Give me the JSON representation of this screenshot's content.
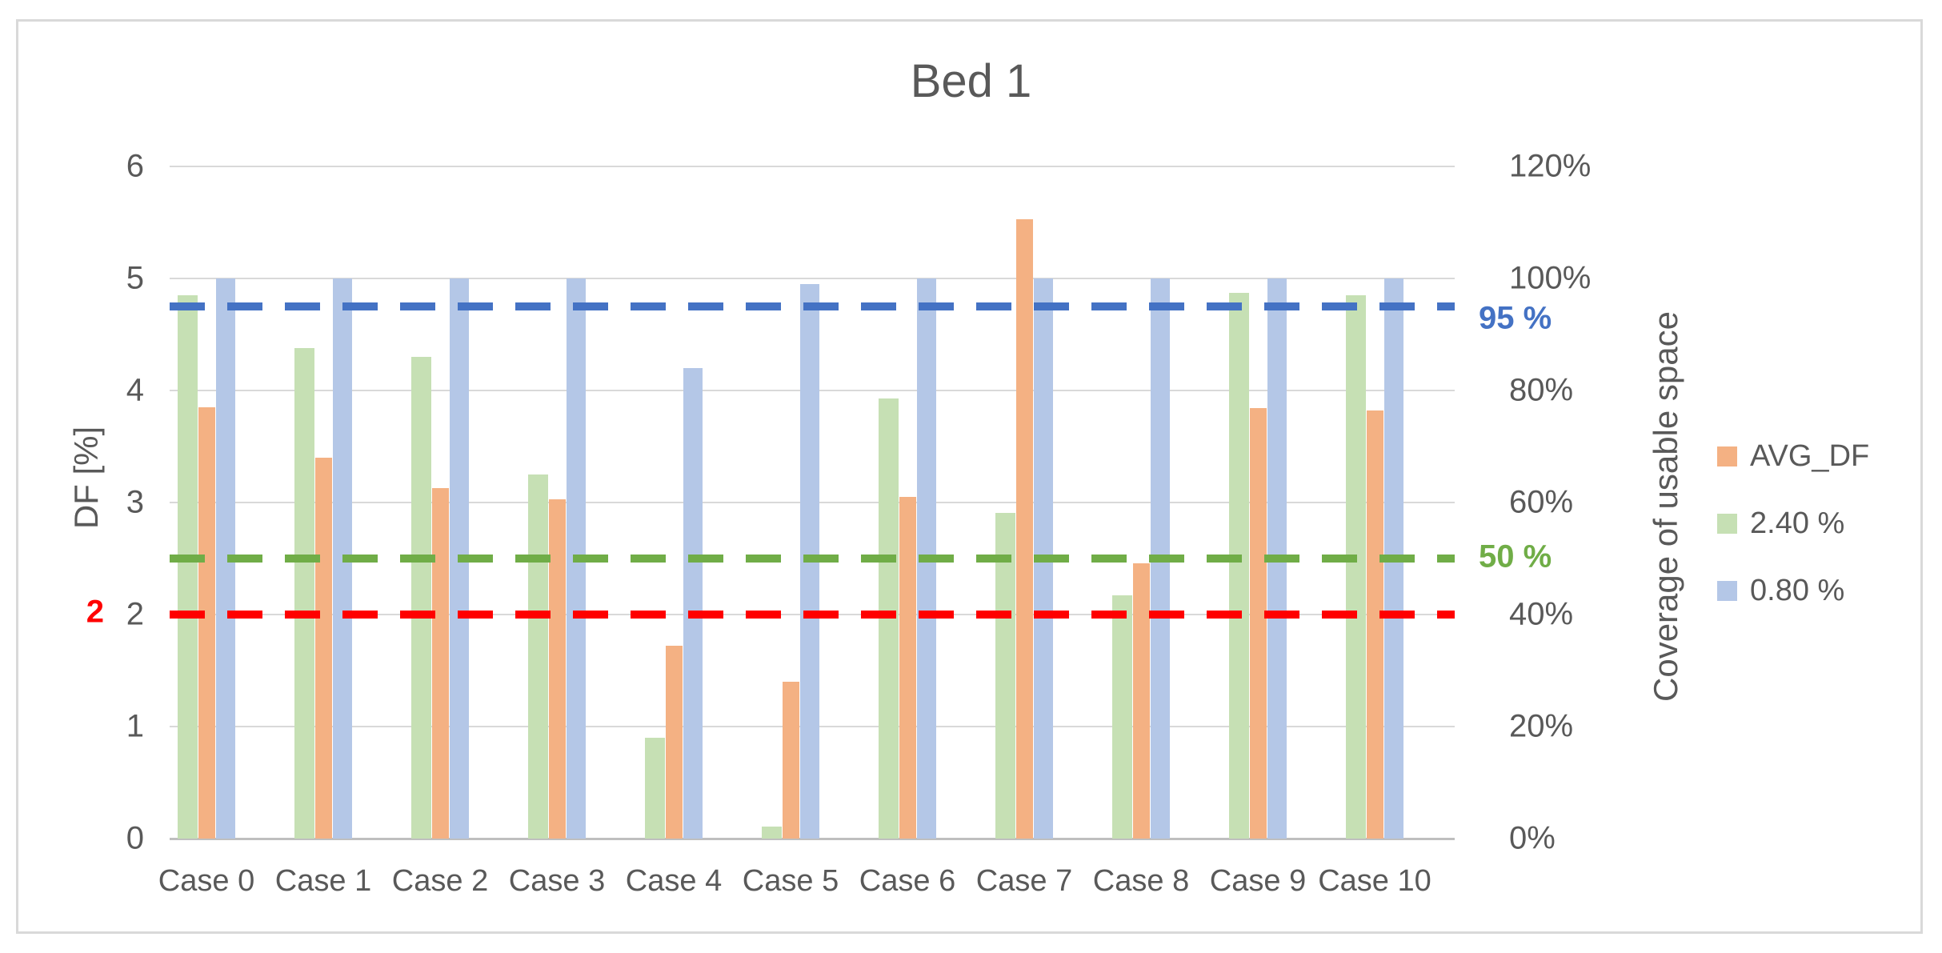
{
  "chart_data": {
    "type": "bar",
    "title": "Bed 1",
    "categories": [
      "Case 0",
      "Case 1",
      "Case 2",
      "Case 3",
      "Case 4",
      "Case 5",
      "Case 6",
      "Case 7",
      "Case 8",
      "Case 9",
      "Case 10"
    ],
    "series": [
      {
        "name": "AVG_DF",
        "axis": "left",
        "color": "#F4B183",
        "values": [
          3.85,
          3.4,
          3.13,
          3.03,
          1.72,
          1.4,
          3.05,
          5.53,
          2.46,
          3.84,
          3.82
        ]
      },
      {
        "name": "2.40 %",
        "axis": "left",
        "color": "#C6E0B4",
        "values": [
          4.85,
          4.38,
          4.3,
          3.25,
          0.9,
          0.11,
          3.93,
          2.91,
          2.17,
          4.87,
          4.85
        ]
      },
      {
        "name": "0.80 %",
        "axis": "right",
        "color": "#B4C7E7",
        "values": [
          100,
          100,
          100,
          100,
          84,
          99,
          100,
          100,
          100,
          100,
          100
        ]
      }
    ],
    "left_axis": {
      "label": "DF [%]",
      "min": 0,
      "max": 6,
      "ticks": [
        "0",
        "1",
        "2",
        "3",
        "4",
        "5",
        "6"
      ]
    },
    "right_axis": {
      "label": "Coverage of usable space",
      "min_pct": 0,
      "max_pct": 120,
      "ticks": [
        "0%",
        "20%",
        "40%",
        "60%",
        "80%",
        "100%",
        "120%"
      ]
    },
    "reference_lines": [
      {
        "label": "95 %",
        "axis": "right",
        "value_pct": 95,
        "color": "#4472C4",
        "label_side": "right"
      },
      {
        "label": "50 %",
        "axis": "right",
        "value_pct": 50,
        "color": "#70AD47",
        "label_side": "right"
      },
      {
        "label": "2",
        "axis": "left",
        "value": 2,
        "color": "#FF0000",
        "label_side": "left"
      }
    ],
    "legend": [
      "AVG_DF",
      "2.40 %",
      "0.80 %"
    ],
    "grid": true,
    "legend_position": "right"
  },
  "colors": {
    "title_text": "#595959",
    "axis_text": "#595959",
    "gridline": "#D9D9D9",
    "axis_line": "#BFBFBF",
    "frame_border": "#D9D9D9",
    "background": "#FFFFFF"
  }
}
